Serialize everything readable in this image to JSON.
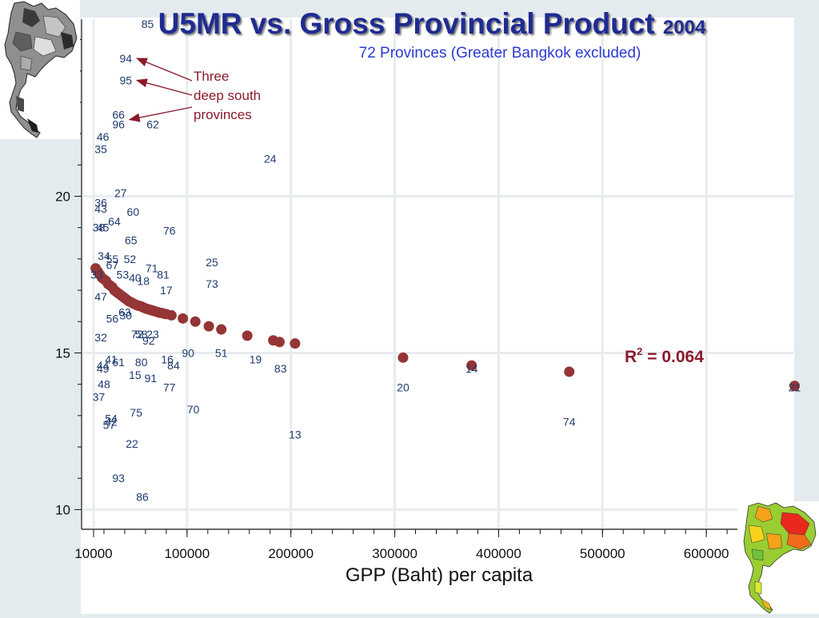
{
  "title": {
    "main": "U5MR vs. Gross Provincial Product",
    "year": "2004",
    "subtitle": "72 Provinces (Greater Bangkok excluded)"
  },
  "annotation": {
    "lines": [
      "Three",
      "deep south",
      "provinces"
    ],
    "r_squared_prefix": "R",
    "r_squared_exp": "2",
    "r_squared_value": " = 0.064"
  },
  "colors": {
    "title": "#1f2b92",
    "subtitle": "#2a3bd1",
    "province_label": "#1f3b6e",
    "fitted_marker": "#953535",
    "annotation": "#8b1a2b",
    "grid": "#e8ecef",
    "background": "#e4ebef",
    "map_low_incidence": "#8bd33a",
    "map_high_incidence": "#e8281c"
  },
  "chart_data": {
    "type": "scatter",
    "xlabel": "GPP (Baht) per capita",
    "ylabel": "",
    "xlim": [
      0,
      690000
    ],
    "ylim": [
      9.5,
      25.6
    ],
    "x_ticks": [
      10000,
      100000,
      200000,
      300000,
      400000,
      500000,
      600000
    ],
    "x_tick_labels": [
      "10000",
      "100000",
      "200000",
      "300000",
      "400000",
      "500000",
      "600000"
    ],
    "y_ticks": [
      10,
      15,
      20
    ],
    "y_tick_labels": [
      "10",
      "15",
      "20"
    ],
    "grid": true,
    "series": [
      {
        "kind": "province_labels",
        "points": [
          {
            "label": "85",
            "x": 62000,
            "y": 25.5
          },
          {
            "label": "94",
            "x": 41000,
            "y": 24.4
          },
          {
            "label": "95",
            "x": 41000,
            "y": 23.7
          },
          {
            "label": "66",
            "x": 34000,
            "y": 22.6
          },
          {
            "label": "96",
            "x": 34000,
            "y": 22.3
          },
          {
            "label": "62",
            "x": 67000,
            "y": 22.3
          },
          {
            "label": "46",
            "x": 19000,
            "y": 21.9
          },
          {
            "label": "35",
            "x": 17000,
            "y": 21.5
          },
          {
            "label": "24",
            "x": 180000,
            "y": 21.2
          },
          {
            "label": "27",
            "x": 36000,
            "y": 20.1
          },
          {
            "label": "36",
            "x": 17000,
            "y": 19.8
          },
          {
            "label": "43",
            "x": 17000,
            "y": 19.6
          },
          {
            "label": "60",
            "x": 48000,
            "y": 19.5
          },
          {
            "label": "64",
            "x": 30000,
            "y": 19.2
          },
          {
            "label": "38",
            "x": 15000,
            "y": 19.0
          },
          {
            "label": "45",
            "x": 19000,
            "y": 19.0
          },
          {
            "label": "76",
            "x": 83000,
            "y": 18.9
          },
          {
            "label": "65",
            "x": 46000,
            "y": 18.6
          },
          {
            "label": "34",
            "x": 20000,
            "y": 18.1
          },
          {
            "label": "55",
            "x": 28000,
            "y": 18.0
          },
          {
            "label": "52",
            "x": 45000,
            "y": 18.0
          },
          {
            "label": "25",
            "x": 124000,
            "y": 17.9
          },
          {
            "label": "67",
            "x": 28000,
            "y": 17.8
          },
          {
            "label": "71",
            "x": 66000,
            "y": 17.7
          },
          {
            "label": "33",
            "x": 13000,
            "y": 17.5
          },
          {
            "label": "53",
            "x": 38000,
            "y": 17.5
          },
          {
            "label": "40",
            "x": 50000,
            "y": 17.4
          },
          {
            "label": "81",
            "x": 77000,
            "y": 17.5
          },
          {
            "label": "18",
            "x": 58000,
            "y": 17.3
          },
          {
            "label": "73",
            "x": 124000,
            "y": 17.2
          },
          {
            "label": "17",
            "x": 80000,
            "y": 17.0
          },
          {
            "label": "47",
            "x": 17000,
            "y": 16.8
          },
          {
            "label": "63",
            "x": 40000,
            "y": 16.3
          },
          {
            "label": "30",
            "x": 41000,
            "y": 16.2
          },
          {
            "label": "56",
            "x": 28000,
            "y": 16.1
          },
          {
            "label": "72",
            "x": 52000,
            "y": 15.6
          },
          {
            "label": "58",
            "x": 56000,
            "y": 15.6
          },
          {
            "label": "23",
            "x": 67000,
            "y": 15.6
          },
          {
            "label": "32",
            "x": 17000,
            "y": 15.5
          },
          {
            "label": "92",
            "x": 63000,
            "y": 15.4
          },
          {
            "label": "90",
            "x": 101000,
            "y": 15.0
          },
          {
            "label": "51",
            "x": 133000,
            "y": 15.0
          },
          {
            "label": "41",
            "x": 27000,
            "y": 14.8
          },
          {
            "label": "16",
            "x": 81000,
            "y": 14.8
          },
          {
            "label": "19",
            "x": 166000,
            "y": 14.8
          },
          {
            "label": "80",
            "x": 56000,
            "y": 14.7
          },
          {
            "label": "44",
            "x": 19000,
            "y": 14.6
          },
          {
            "label": "61",
            "x": 34000,
            "y": 14.7
          },
          {
            "label": "49",
            "x": 19000,
            "y": 14.5
          },
          {
            "label": "84",
            "x": 87000,
            "y": 14.6
          },
          {
            "label": "83",
            "x": 190000,
            "y": 14.5
          },
          {
            "label": "14",
            "x": 374000,
            "y": 14.5
          },
          {
            "label": "15",
            "x": 50000,
            "y": 14.3
          },
          {
            "label": "91",
            "x": 65000,
            "y": 14.2
          },
          {
            "label": "48",
            "x": 20000,
            "y": 14.0
          },
          {
            "label": "77",
            "x": 83000,
            "y": 13.9
          },
          {
            "label": "20",
            "x": 308000,
            "y": 13.9
          },
          {
            "label": "21",
            "x": 685000,
            "y": 13.9
          },
          {
            "label": "37",
            "x": 15000,
            "y": 13.6
          },
          {
            "label": "70",
            "x": 106000,
            "y": 13.2
          },
          {
            "label": "75",
            "x": 51000,
            "y": 13.1
          },
          {
            "label": "54",
            "x": 27000,
            "y": 12.9
          },
          {
            "label": "42",
            "x": 27000,
            "y": 12.8
          },
          {
            "label": "57",
            "x": 25000,
            "y": 12.7
          },
          {
            "label": "74",
            "x": 468000,
            "y": 12.8
          },
          {
            "label": "13",
            "x": 204000,
            "y": 12.4
          },
          {
            "label": "22",
            "x": 47000,
            "y": 12.1
          },
          {
            "label": "93",
            "x": 34000,
            "y": 11.0
          },
          {
            "label": "86",
            "x": 57000,
            "y": 10.4
          }
        ]
      },
      {
        "kind": "fitted_values",
        "x": [
          12000,
          14000,
          16000,
          18000,
          20000,
          22000,
          24000,
          26000,
          28000,
          30000,
          32000,
          34000,
          36000,
          38000,
          40000,
          42000,
          44000,
          46000,
          48000,
          50000,
          52000,
          54000,
          56000,
          58000,
          60000,
          62000,
          64000,
          66000,
          68000,
          70000,
          72000,
          74000,
          76000,
          78000,
          80000,
          85000,
          96000,
          108000,
          121000,
          133000,
          158000,
          183000,
          189000,
          204000,
          308000,
          374000,
          468000,
          685000
        ],
        "y": [
          17.7,
          17.6,
          17.5,
          17.4,
          17.35,
          17.3,
          17.2,
          17.15,
          17.1,
          17.0,
          16.95,
          16.9,
          16.85,
          16.8,
          16.75,
          16.7,
          16.65,
          16.62,
          16.58,
          16.55,
          16.52,
          16.5,
          16.48,
          16.45,
          16.42,
          16.4,
          16.38,
          16.36,
          16.34,
          16.32,
          16.3,
          16.28,
          16.27,
          16.25,
          16.24,
          16.2,
          16.1,
          16.0,
          15.85,
          15.75,
          15.55,
          15.4,
          15.35,
          15.3,
          14.85,
          14.6,
          14.4,
          13.95
        ]
      }
    ],
    "annotation_targets": [
      {
        "label": "94",
        "x": 41000,
        "y": 24.4
      },
      {
        "label": "95",
        "x": 41000,
        "y": 23.7
      },
      {
        "label": "66",
        "x": 34000,
        "y": 22.6
      }
    ]
  }
}
